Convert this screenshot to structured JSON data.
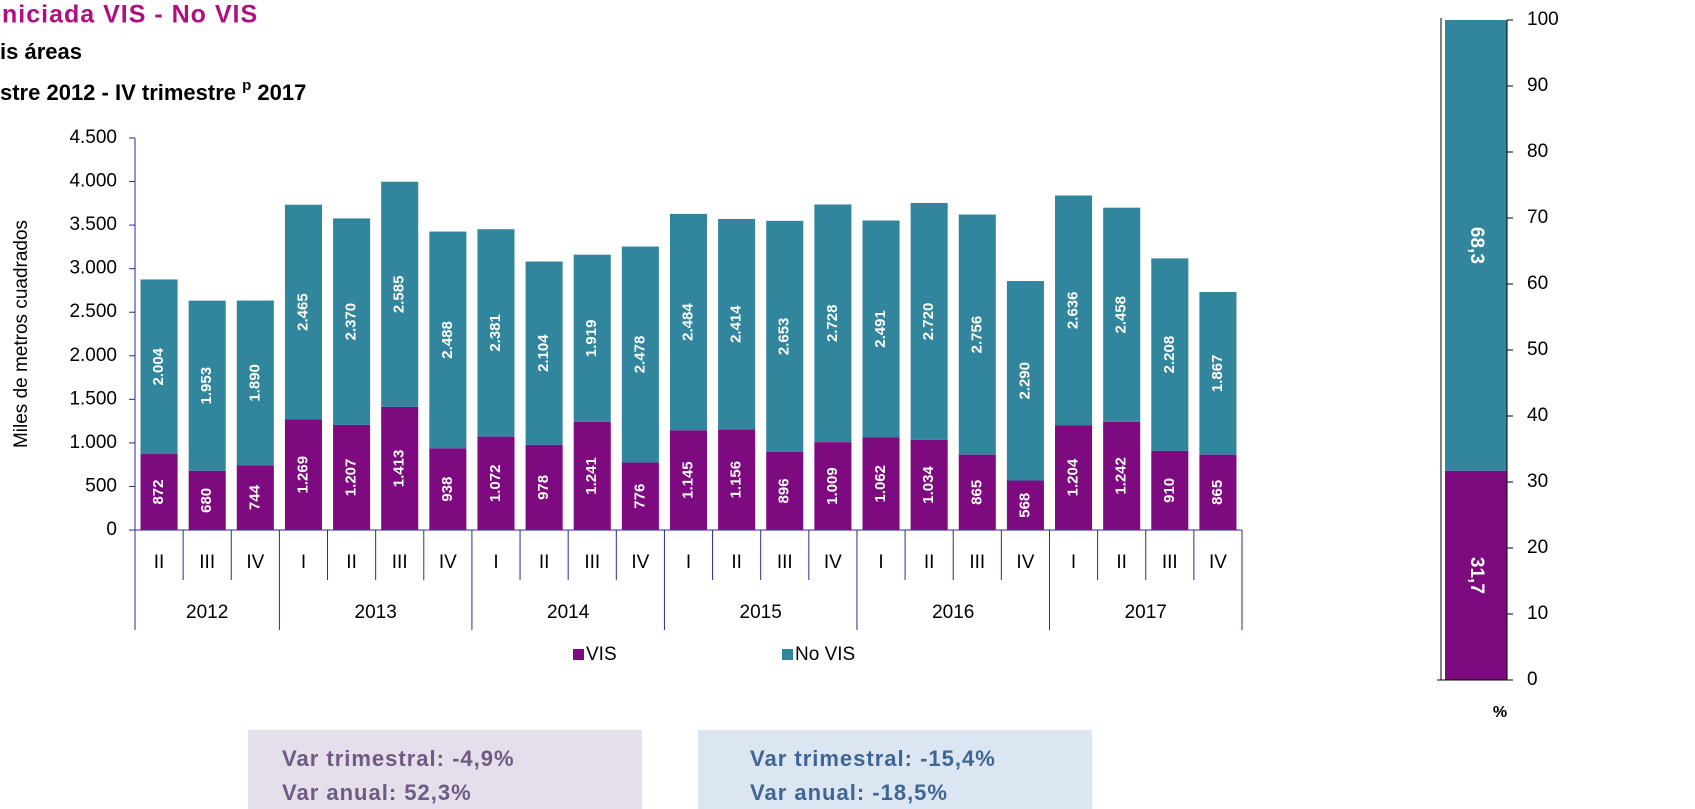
{
  "title": "niciada VIS - No VIS",
  "subtitle": "is áreas",
  "subtitle2": [
    "stre 2012 - IV trimestre ",
    "p",
    " 2017"
  ],
  "chart_data": [
    {
      "type": "stacked_bar",
      "ylabel": "Miles de metros cuadrados",
      "groups": [
        {
          "name": "2012",
          "categories": [
            "II",
            "III",
            "IV"
          ]
        },
        {
          "name": "2013",
          "categories": [
            "I",
            "II",
            "III",
            "IV"
          ]
        },
        {
          "name": "2014",
          "categories": [
            "I",
            "II",
            "III",
            "IV"
          ]
        },
        {
          "name": "2015",
          "categories": [
            "I",
            "II",
            "III",
            "IV"
          ]
        },
        {
          "name": "2016",
          "categories": [
            "I",
            "II",
            "III",
            "IV"
          ]
        },
        {
          "name": "2017",
          "categories": [
            "I",
            "II",
            "III",
            "IV"
          ]
        }
      ],
      "series": [
        {
          "name": "VIS",
          "color": "#7e0a80",
          "values": [
            872,
            680,
            744,
            1269,
            1207,
            1413,
            938,
            1072,
            978,
            1241,
            776,
            1145,
            1156,
            896,
            1009,
            1062,
            1034,
            865,
            568,
            1204,
            1242,
            910,
            865
          ],
          "value_labels": [
            "872",
            "680",
            "744",
            "1.269",
            "1.207",
            "1.413",
            "938",
            "1.072",
            "978",
            "1.241",
            "776",
            "1.145",
            "1.156",
            "896",
            "1.009",
            "1.062",
            "1.034",
            "865",
            "568",
            "1.204",
            "1.242",
            "910",
            "865"
          ]
        },
        {
          "name": "No VIS",
          "color": "#31859c",
          "values": [
            2004,
            1953,
            1890,
            2465,
            2370,
            2585,
            2488,
            2381,
            2104,
            1919,
            2478,
            2484,
            2414,
            2653,
            2728,
            2491,
            2720,
            2756,
            2290,
            2636,
            2458,
            2208,
            1867
          ],
          "value_labels": [
            "2.004",
            "1.953",
            "1.890",
            "2.465",
            "2.370",
            "2.585",
            "2.488",
            "2.381",
            "2.104",
            "1.919",
            "2.478",
            "2.484",
            "2.414",
            "2.653",
            "2.728",
            "2.491",
            "2.720",
            "2.756",
            "2.290",
            "2.636",
            "2.458",
            "2.208",
            "1.867"
          ]
        }
      ],
      "ylim": [
        0,
        4500
      ],
      "yticks": [
        0,
        500,
        {
          "value": 1000,
          "label": "1.000"
        },
        {
          "value": 1500,
          "label": "1.500"
        },
        {
          "value": 2000,
          "label": "2.000"
        },
        {
          "value": 2500,
          "label": "2.500"
        },
        {
          "value": 3000,
          "label": "3.000"
        },
        {
          "value": 3500,
          "label": "3.500"
        },
        {
          "value": 4000,
          "label": "4.000"
        },
        {
          "value": 4500,
          "label": "4.500"
        }
      ],
      "legend": "bottom"
    },
    {
      "type": "stacked_bar_single",
      "xlabel": "%",
      "values": [
        31.7,
        68.3
      ],
      "value_labels": [
        "31,7",
        "68,3"
      ],
      "colors": [
        "#7e0a80",
        "#31859c"
      ],
      "ylim": [
        0,
        100
      ],
      "yticks": [
        0,
        10,
        20,
        30,
        40,
        50,
        60,
        70,
        80,
        90,
        100
      ]
    }
  ],
  "notes": [
    {
      "lines": [
        "Var trimestral: -4,9%",
        "Var anual: 52,3%"
      ]
    },
    {
      "lines": [
        "Var trimestral: -15,4%",
        "Var anual: -18,5%"
      ]
    }
  ]
}
